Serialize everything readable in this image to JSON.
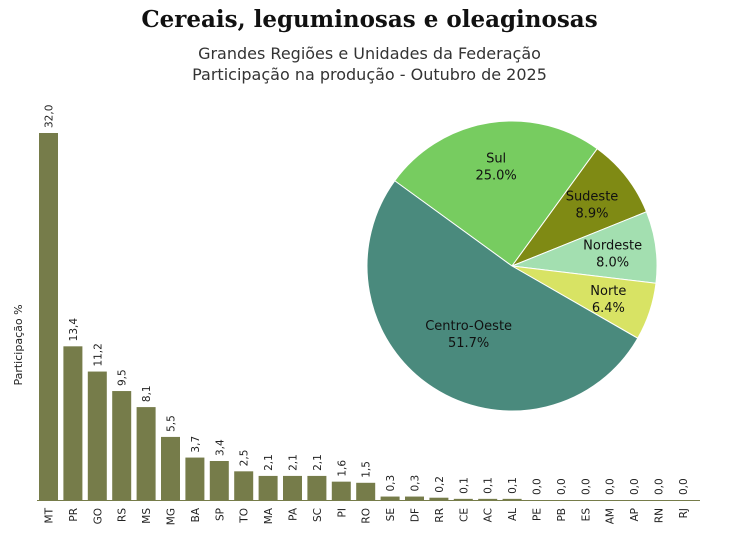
{
  "title": "Cereais, leguminosas e oleaginosas",
  "subtitle_line1": "Grandes Regiões e Unidades da Federação",
  "subtitle_line2": "Participação na produção - Outubro de 2025",
  "chart_data": [
    {
      "type": "bar",
      "ylabel": "Participação %",
      "categories": [
        "MT",
        "PR",
        "GO",
        "RS",
        "MS",
        "MG",
        "BA",
        "SP",
        "TO",
        "MA",
        "PA",
        "SC",
        "PI",
        "RO",
        "SE",
        "DF",
        "RR",
        "CE",
        "AC",
        "AL",
        "PE",
        "PB",
        "ES",
        "AM",
        "AP",
        "RN",
        "RJ"
      ],
      "values": [
        32.0,
        13.4,
        11.2,
        9.5,
        8.1,
        5.5,
        3.7,
        3.4,
        2.5,
        2.1,
        2.1,
        2.1,
        1.6,
        1.5,
        0.3,
        0.3,
        0.2,
        0.1,
        0.1,
        0.1,
        0.0,
        0.0,
        0.0,
        0.0,
        0.0,
        0.0,
        0.0
      ],
      "value_labels": [
        "32,0",
        "13,4",
        "11,2",
        "9,5",
        "8,1",
        "5,5",
        "3,7",
        "3,4",
        "2,5",
        "2,1",
        "2,1",
        "2,1",
        "1,6",
        "1,5",
        "0,3",
        "0,3",
        "0,2",
        "0,1",
        "0,1",
        "0,1",
        "0,0",
        "0,0",
        "0,0",
        "0,0",
        "0,0",
        "0,0",
        "0,0"
      ],
      "ylim": [
        0,
        32
      ],
      "bar_color": "#767c4a",
      "grid": false
    },
    {
      "type": "pie",
      "slices": [
        {
          "label": "Sul",
          "value": 25.0,
          "value_label": "25.0%",
          "color": "#77cc60"
        },
        {
          "label": "Sudeste",
          "value": 8.9,
          "value_label": "8.9%",
          "color": "#7f8a14"
        },
        {
          "label": "Nordeste",
          "value": 8.0,
          "value_label": "8.0%",
          "color": "#a3dfb0"
        },
        {
          "label": "Norte",
          "value": 6.4,
          "value_label": "6.4%",
          "color": "#d8e364"
        },
        {
          "label": "Centro-Oeste",
          "value": 51.7,
          "value_label": "51.7%",
          "color": "#4a8a7d"
        }
      ]
    }
  ]
}
